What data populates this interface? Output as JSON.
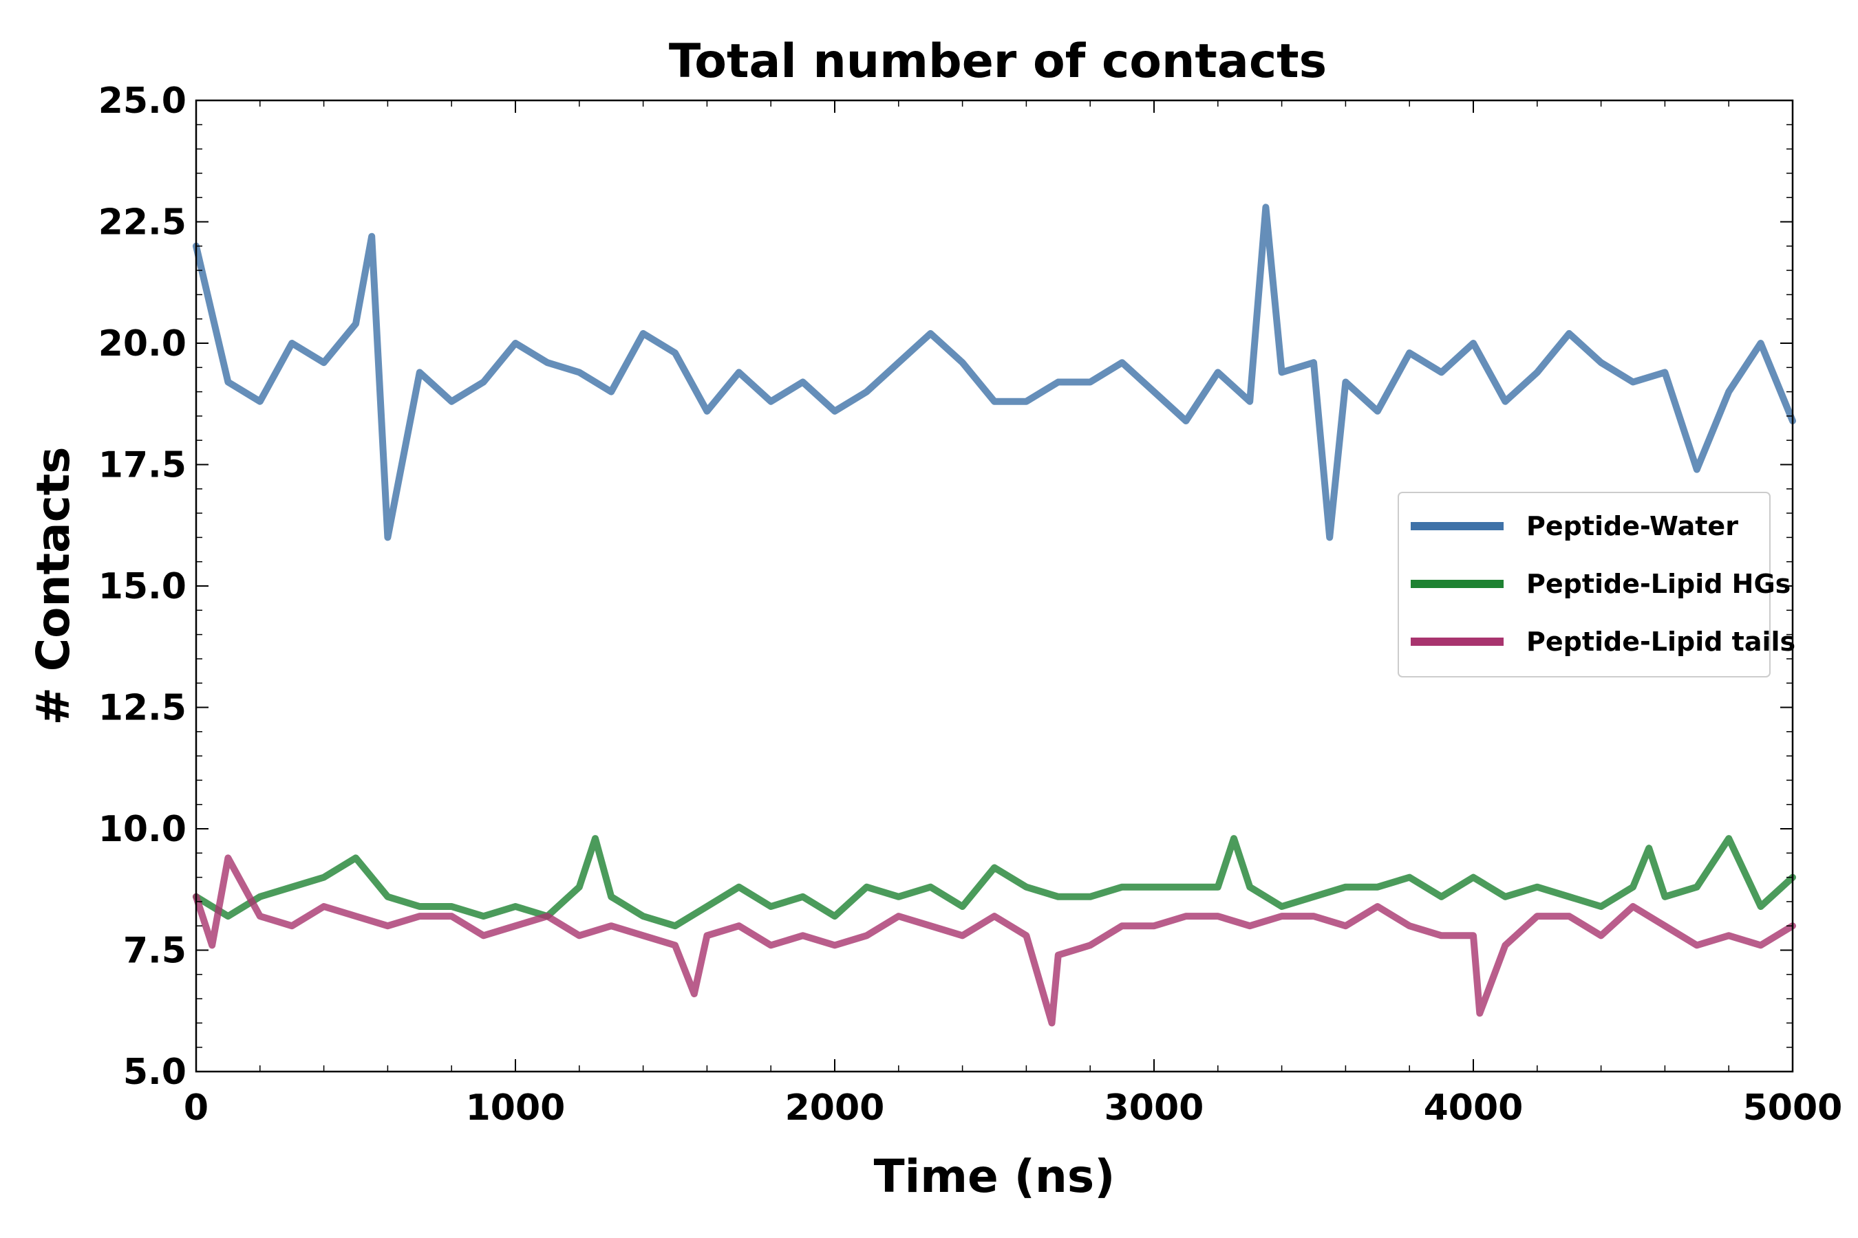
{
  "chart_data": {
    "type": "line",
    "title": "Total number of contacts",
    "xlabel": "Time (ns)",
    "ylabel": "# Contacts",
    "xlim": [
      0,
      5000
    ],
    "ylim": [
      5.0,
      25.0
    ],
    "x_ticks": [
      "0",
      "1000",
      "2000",
      "3000",
      "4000",
      "5000"
    ],
    "y_ticks": [
      "5.0",
      "7.5",
      "10.0",
      "12.5",
      "15.0",
      "17.5",
      "20.0",
      "22.5",
      "25.0"
    ],
    "grid": false,
    "legend_position": "center-right",
    "series": [
      {
        "name": "Peptide-Water",
        "color": "#3f72a8",
        "x": [
          0,
          100,
          200,
          300,
          400,
          500,
          550,
          600,
          700,
          800,
          900,
          1000,
          1100,
          1200,
          1300,
          1400,
          1500,
          1600,
          1700,
          1800,
          1900,
          2000,
          2100,
          2200,
          2300,
          2400,
          2500,
          2600,
          2700,
          2800,
          2900,
          3000,
          3100,
          3200,
          3300,
          3350,
          3400,
          3500,
          3550,
          3600,
          3700,
          3800,
          3900,
          4000,
          4100,
          4200,
          4300,
          4400,
          4500,
          4600,
          4700,
          4800,
          4900,
          5000
        ],
        "values": [
          22.0,
          19.2,
          18.8,
          20.0,
          19.6,
          20.4,
          22.2,
          16.0,
          19.4,
          18.8,
          19.2,
          20.0,
          19.6,
          19.4,
          19.0,
          20.2,
          19.8,
          18.6,
          19.4,
          18.8,
          19.2,
          18.6,
          19.0,
          19.6,
          20.2,
          19.6,
          18.8,
          18.8,
          19.2,
          19.2,
          19.6,
          19.0,
          18.4,
          19.4,
          18.8,
          22.8,
          19.4,
          19.6,
          16.0,
          19.2,
          18.6,
          19.8,
          19.4,
          20.0,
          18.8,
          19.4,
          20.2,
          19.6,
          19.2,
          19.4,
          17.4,
          19.0,
          20.0,
          18.4
        ]
      },
      {
        "name": "Peptide-Lipid HGs",
        "color": "#1e8232",
        "x": [
          0,
          100,
          200,
          300,
          400,
          500,
          600,
          700,
          800,
          900,
          1000,
          1100,
          1200,
          1250,
          1300,
          1400,
          1500,
          1600,
          1700,
          1800,
          1900,
          2000,
          2100,
          2200,
          2300,
          2400,
          2500,
          2600,
          2700,
          2800,
          2900,
          3000,
          3100,
          3200,
          3250,
          3300,
          3400,
          3500,
          3600,
          3700,
          3800,
          3900,
          4000,
          4100,
          4200,
          4300,
          4400,
          4500,
          4550,
          4600,
          4700,
          4800,
          4900,
          5000
        ],
        "values": [
          8.6,
          8.2,
          8.6,
          8.8,
          9.0,
          9.4,
          8.6,
          8.4,
          8.4,
          8.2,
          8.4,
          8.2,
          8.8,
          9.8,
          8.6,
          8.2,
          8.0,
          8.4,
          8.8,
          8.4,
          8.6,
          8.2,
          8.8,
          8.6,
          8.8,
          8.4,
          9.2,
          8.8,
          8.6,
          8.6,
          8.8,
          8.8,
          8.8,
          8.8,
          9.8,
          8.8,
          8.4,
          8.6,
          8.8,
          8.8,
          9.0,
          8.6,
          9.0,
          8.6,
          8.8,
          8.6,
          8.4,
          8.8,
          9.6,
          8.6,
          8.8,
          9.8,
          8.4,
          9.0
        ]
      },
      {
        "name": "Peptide-Lipid tails",
        "color": "#a8346e",
        "x": [
          0,
          50,
          100,
          200,
          300,
          400,
          500,
          600,
          700,
          800,
          900,
          1000,
          1100,
          1200,
          1300,
          1400,
          1500,
          1560,
          1600,
          1700,
          1800,
          1900,
          2000,
          2100,
          2200,
          2300,
          2400,
          2500,
          2600,
          2680,
          2700,
          2800,
          2900,
          3000,
          3100,
          3200,
          3300,
          3400,
          3500,
          3600,
          3700,
          3800,
          3900,
          4000,
          4020,
          4100,
          4200,
          4300,
          4400,
          4500,
          4600,
          4700,
          4800,
          4900,
          5000
        ],
        "values": [
          8.6,
          7.6,
          9.4,
          8.2,
          8.0,
          8.4,
          8.2,
          8.0,
          8.2,
          8.2,
          7.8,
          8.0,
          8.2,
          7.8,
          8.0,
          7.8,
          7.6,
          6.6,
          7.8,
          8.0,
          7.6,
          7.8,
          7.6,
          7.8,
          8.2,
          8.0,
          7.8,
          8.2,
          7.8,
          6.0,
          7.4,
          7.6,
          8.0,
          8.0,
          8.2,
          8.2,
          8.0,
          8.2,
          8.2,
          8.0,
          8.4,
          8.0,
          7.8,
          7.8,
          6.2,
          7.6,
          8.2,
          8.2,
          7.8,
          8.4,
          8.0,
          7.6,
          7.8,
          7.6,
          8.0
        ]
      }
    ]
  }
}
